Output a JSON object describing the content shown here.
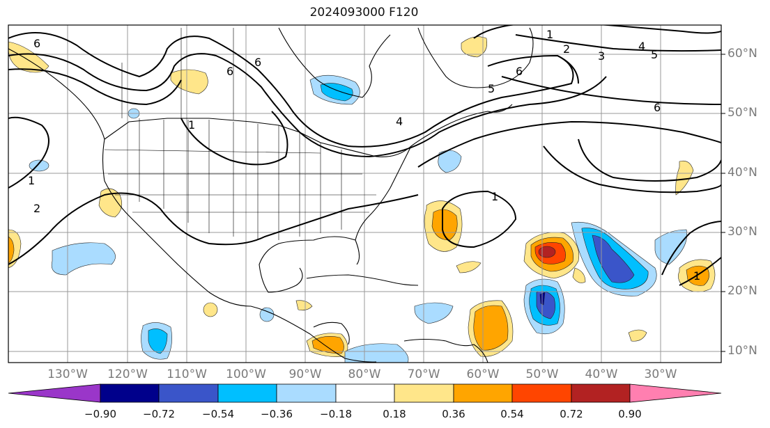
{
  "title": "2024093000 F120",
  "lat_labels": [
    "60°N",
    "50°N",
    "40°N",
    "30°N",
    "20°N",
    "10°N"
  ],
  "lon_labels": [
    "130°W",
    "120°W",
    "110°W",
    "100°W",
    "90°W",
    "80°W",
    "70°W",
    "60°W",
    "50°W",
    "40°W",
    "30°W"
  ],
  "colorbar": {
    "ticks": [
      "−0.90",
      "−0.72",
      "−0.54",
      "−0.36",
      "−0.18",
      "0.18",
      "0.36",
      "0.54",
      "0.72",
      "0.90"
    ],
    "colors": [
      "#9a36c9",
      "#00008b",
      "#3a55c9",
      "#00bfff",
      "#aadcff",
      "#ffffff",
      "#ffe68a",
      "#ffa500",
      "#ff4500",
      "#b22222",
      "#ff7fb0"
    ]
  },
  "contour_labels": [
    "6",
    "1",
    "6",
    "6",
    "5",
    "4",
    "6",
    "1",
    "2",
    "3",
    "4",
    "5",
    "6",
    "1",
    "2",
    "1",
    "1"
  ]
}
